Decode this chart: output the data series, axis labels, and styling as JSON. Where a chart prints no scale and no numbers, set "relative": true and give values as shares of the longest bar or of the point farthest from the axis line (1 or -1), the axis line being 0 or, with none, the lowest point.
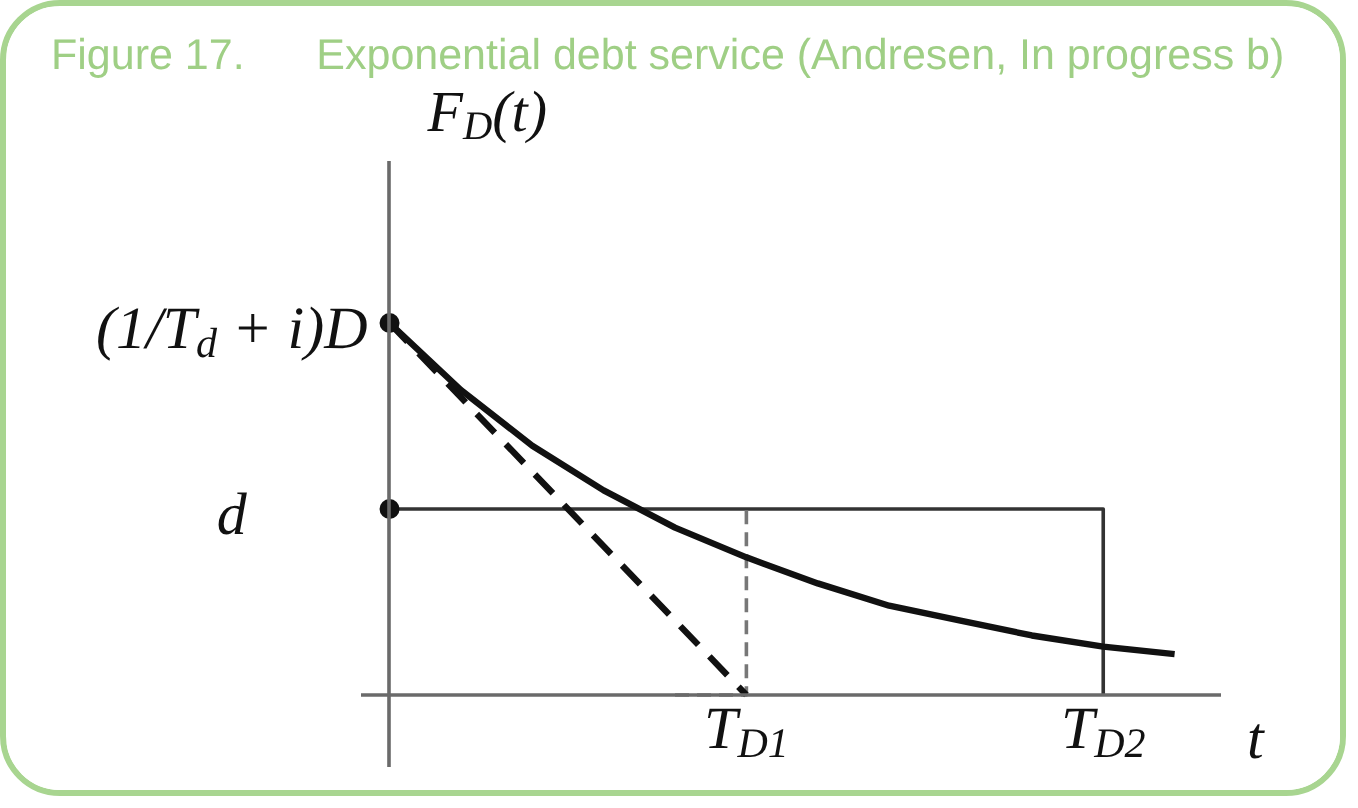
{
  "chart_data": {
    "type": "line",
    "title": "Figure 17.      Exponential debt service (Andresen, In progress b)",
    "xlabel": "t",
    "ylabel": "F$_{D}$(t)",
    "relative": true,
    "categories": [
      null,
      null,
      null,
      null,
      null,
      "T$_{D1}$",
      null,
      null,
      null,
      null,
      "T$_{D2}$",
      null
    ],
    "series": [
      {
        "type": "step",
        "color": "#333333",
        "values": [
          0.5,
          0.5,
          0.5,
          0.5,
          0.5,
          0.5,
          0.5,
          0.5,
          0.5,
          0.5,
          0,
          null
        ]
      },
      {
        "type": "step",
        "color": "#777777",
        "line_style": "dashed",
        "values": [
          null,
          null,
          null,
          null,
          0,
          0.5,
          null,
          null,
          null,
          null,
          null,
          null
        ]
      },
      {
        "color": "#111111",
        "line_style": "dashed",
        "values": [
          1,
          0.8,
          0.6,
          0.4,
          0.2,
          0,
          null,
          null,
          null,
          null,
          null,
          null
        ]
      },
      {
        "color": "#111111",
        "values": [
          1,
          0.82,
          0.67,
          0.55,
          0.45,
          0.37,
          0.3,
          0.24,
          0.2,
          0.16,
          0.13,
          0.11
        ]
      },
      {
        "type": "scatter",
        "color": "#111111",
        "marker": "circle",
        "values": [
          1,
          null,
          null,
          null,
          null,
          null,
          null,
          null,
          null,
          null,
          null,
          null
        ]
      },
      {
        "type": "scatter",
        "color": "#111111",
        "marker": "circle",
        "values": [
          0.5,
          null,
          null,
          null,
          null,
          null,
          null,
          null,
          null,
          null,
          null,
          null
        ]
      }
    ],
    "annotations": [
      "(1/T$_{d}$ + i)D",
      "d"
    ]
  }
}
